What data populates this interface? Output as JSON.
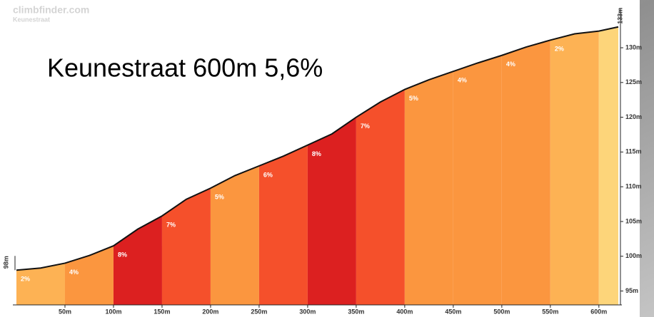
{
  "chart_data": {
    "type": "climb-profile",
    "title": "Keunestraat 600m 5,6%",
    "watermark": "climbfinder.com",
    "watermark_subtitle": "Keunestraat",
    "start_label": "98m",
    "end_label": "133m",
    "x": [
      0,
      25,
      50,
      75,
      100,
      125,
      150,
      175,
      200,
      225,
      250,
      275,
      300,
      325,
      350,
      375,
      400,
      425,
      450,
      475,
      500,
      525,
      550,
      575,
      600,
      620
    ],
    "values": [
      98,
      98.3,
      99,
      100.1,
      101.5,
      103.9,
      105.8,
      108.2,
      109.8,
      111.6,
      113,
      114.4,
      116,
      117.6,
      120,
      122.2,
      124,
      125.4,
      126.6,
      127.8,
      128.9,
      130.1,
      131.1,
      132,
      132.4,
      133
    ],
    "segments": {
      "bins": [
        0,
        50,
        100,
        150,
        200,
        250,
        300,
        350,
        400,
        450,
        500,
        550,
        600,
        620
      ],
      "grades": [
        2,
        4,
        8,
        7,
        5,
        6,
        8,
        7,
        5,
        4,
        4,
        2,
        null
      ],
      "value_labels": [
        "2%",
        "4%",
        "8%",
        "7%",
        "5%",
        "6%",
        "8%",
        "7%",
        "5%",
        "4%",
        "4%",
        "2%",
        null
      ],
      "colors": [
        "#fdb254",
        "#fb963f",
        "#dc2020",
        "#f5502b",
        "#fb963f",
        "#f5502b",
        "#dc2020",
        "#f5502b",
        "#fb963f",
        "#fb963f",
        "#fb963f",
        "#fdb254",
        "#fdd57a"
      ]
    },
    "xlim": [
      0,
      620
    ],
    "ylim": [
      93,
      134
    ],
    "xticks": [
      {
        "value": 50,
        "label": "50m"
      },
      {
        "value": 100,
        "label": "100m"
      },
      {
        "value": 150,
        "label": "150m"
      },
      {
        "value": 200,
        "label": "200m"
      },
      {
        "value": 250,
        "label": "250m"
      },
      {
        "value": 300,
        "label": "300m"
      },
      {
        "value": 350,
        "label": "350m"
      },
      {
        "value": 400,
        "label": "400m"
      },
      {
        "value": 450,
        "label": "450m"
      },
      {
        "value": 500,
        "label": "500m"
      },
      {
        "value": 550,
        "label": "550m"
      },
      {
        "value": 600,
        "label": "600m"
      }
    ],
    "yticks": [
      {
        "value": 95,
        "label": "95m"
      },
      {
        "value": 100,
        "label": "100m"
      },
      {
        "value": 105,
        "label": "105m"
      },
      {
        "value": 110,
        "label": "110m"
      },
      {
        "value": 115,
        "label": "115m"
      },
      {
        "value": 120,
        "label": "120m"
      },
      {
        "value": 125,
        "label": "125m"
      },
      {
        "value": 130,
        "label": "130m"
      }
    ]
  }
}
